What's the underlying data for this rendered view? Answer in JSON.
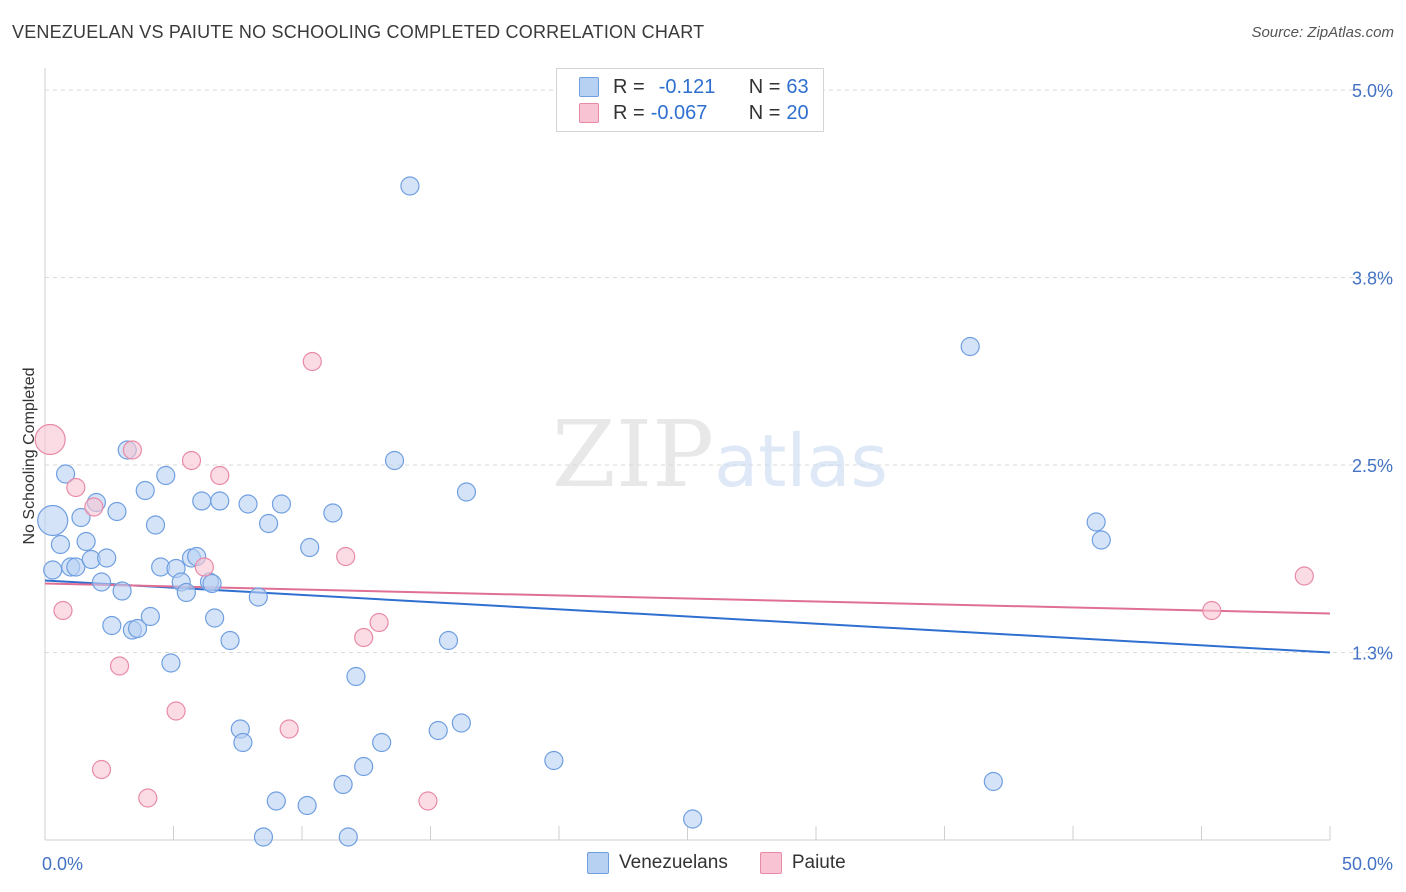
{
  "chart_data": {
    "type": "scatter",
    "title": "VENEZUELAN VS PAIUTE NO SCHOOLING COMPLETED CORRELATION CHART",
    "source": "Source: ZipAtlas.com",
    "ylabel": "No Schooling Completed",
    "xlim": [
      0,
      50
    ],
    "ylim": [
      0.0,
      5.0
    ],
    "x_tick_labels": {
      "left": "0.0%",
      "right": "50.0%"
    },
    "y_ticks": [
      {
        "value": 5.0,
        "label": "5.0%"
      },
      {
        "value": 3.75,
        "label": "3.8%"
      },
      {
        "value": 2.5,
        "label": "2.5%"
      },
      {
        "value": 1.25,
        "label": "1.3%"
      }
    ],
    "legend": {
      "rows": [
        {
          "r_label": "R = ",
          "r_value": "-0.121",
          "n_label": "N = ",
          "n_value": "63"
        },
        {
          "r_label": "R = ",
          "r_value": "-0.067",
          "n_label": "N = ",
          "n_value": "20"
        }
      ]
    },
    "watermark": "ZIPatlas",
    "colors": {
      "venezuelans_fill": "#b7d1f3",
      "venezuelans_stroke": "#6f9fe0",
      "venezuelans_line": "#2f6fd0",
      "paiute_fill": "#f8c4d3",
      "paiute_stroke": "#e88aa6",
      "paiute_line": "#e06f94"
    },
    "series": [
      {
        "name": "Venezuelans",
        "trend": {
          "x0": 0.0,
          "y0": 1.73,
          "x1": 50.0,
          "y1": 1.25
        },
        "points": [
          {
            "x": 0.3,
            "y": 2.13,
            "big": true
          },
          {
            "x": 0.3,
            "y": 1.8
          },
          {
            "x": 0.6,
            "y": 1.97
          },
          {
            "x": 0.8,
            "y": 2.44
          },
          {
            "x": 1.0,
            "y": 1.82
          },
          {
            "x": 1.2,
            "y": 1.82
          },
          {
            "x": 1.4,
            "y": 2.15
          },
          {
            "x": 1.6,
            "y": 1.99
          },
          {
            "x": 1.8,
            "y": 1.87
          },
          {
            "x": 2.0,
            "y": 2.25
          },
          {
            "x": 2.2,
            "y": 1.72
          },
          {
            "x": 2.4,
            "y": 1.88
          },
          {
            "x": 2.6,
            "y": 1.43
          },
          {
            "x": 2.8,
            "y": 2.19
          },
          {
            "x": 3.0,
            "y": 1.66
          },
          {
            "x": 3.2,
            "y": 2.6
          },
          {
            "x": 3.4,
            "y": 1.4
          },
          {
            "x": 3.6,
            "y": 1.41
          },
          {
            "x": 3.9,
            "y": 2.33
          },
          {
            "x": 4.1,
            "y": 1.49
          },
          {
            "x": 4.3,
            "y": 2.1
          },
          {
            "x": 4.5,
            "y": 1.82
          },
          {
            "x": 4.7,
            "y": 2.43
          },
          {
            "x": 4.9,
            "y": 1.18
          },
          {
            "x": 5.1,
            "y": 1.81
          },
          {
            "x": 5.3,
            "y": 1.72
          },
          {
            "x": 5.5,
            "y": 1.65
          },
          {
            "x": 5.7,
            "y": 1.88
          },
          {
            "x": 5.9,
            "y": 1.89
          },
          {
            "x": 6.1,
            "y": 2.26
          },
          {
            "x": 6.4,
            "y": 1.72
          },
          {
            "x": 6.5,
            "y": 1.71
          },
          {
            "x": 6.6,
            "y": 1.48
          },
          {
            "x": 6.8,
            "y": 2.26
          },
          {
            "x": 7.2,
            "y": 1.33
          },
          {
            "x": 7.6,
            "y": 0.74
          },
          {
            "x": 7.7,
            "y": 0.65
          },
          {
            "x": 7.9,
            "y": 2.24
          },
          {
            "x": 8.3,
            "y": 1.62
          },
          {
            "x": 8.5,
            "y": 0.02
          },
          {
            "x": 8.7,
            "y": 2.11
          },
          {
            "x": 9.0,
            "y": 0.26
          },
          {
            "x": 9.2,
            "y": 2.24
          },
          {
            "x": 10.2,
            "y": 0.23
          },
          {
            "x": 10.3,
            "y": 1.95
          },
          {
            "x": 11.2,
            "y": 2.18
          },
          {
            "x": 11.6,
            "y": 0.37
          },
          {
            "x": 11.8,
            "y": 0.02
          },
          {
            "x": 12.1,
            "y": 1.09
          },
          {
            "x": 12.4,
            "y": 0.49
          },
          {
            "x": 13.1,
            "y": 0.65
          },
          {
            "x": 13.6,
            "y": 2.53
          },
          {
            "x": 14.2,
            "y": 4.36
          },
          {
            "x": 15.3,
            "y": 0.73
          },
          {
            "x": 15.7,
            "y": 1.33
          },
          {
            "x": 16.2,
            "y": 0.78
          },
          {
            "x": 16.4,
            "y": 2.32
          },
          {
            "x": 19.8,
            "y": 0.53
          },
          {
            "x": 25.2,
            "y": 0.14
          },
          {
            "x": 36.0,
            "y": 3.29
          },
          {
            "x": 36.9,
            "y": 0.39
          },
          {
            "x": 40.9,
            "y": 2.12
          },
          {
            "x": 41.1,
            "y": 2.0
          }
        ]
      },
      {
        "name": "Paiute",
        "trend": {
          "x0": 0.0,
          "y0": 1.71,
          "x1": 50.0,
          "y1": 1.51
        },
        "points": [
          {
            "x": 0.2,
            "y": 2.67,
            "big": true
          },
          {
            "x": 0.7,
            "y": 1.53
          },
          {
            "x": 1.2,
            "y": 2.35
          },
          {
            "x": 1.9,
            "y": 2.22
          },
          {
            "x": 2.2,
            "y": 0.47
          },
          {
            "x": 2.9,
            "y": 1.16
          },
          {
            "x": 3.4,
            "y": 2.6
          },
          {
            "x": 4.0,
            "y": 0.28
          },
          {
            "x": 5.1,
            "y": 0.86
          },
          {
            "x": 5.7,
            "y": 2.53
          },
          {
            "x": 6.2,
            "y": 1.82
          },
          {
            "x": 6.8,
            "y": 2.43
          },
          {
            "x": 9.5,
            "y": 0.74
          },
          {
            "x": 10.4,
            "y": 3.19
          },
          {
            "x": 11.7,
            "y": 1.89
          },
          {
            "x": 12.4,
            "y": 1.35
          },
          {
            "x": 13.0,
            "y": 1.45
          },
          {
            "x": 14.9,
            "y": 0.26
          },
          {
            "x": 45.4,
            "y": 1.53
          },
          {
            "x": 49.0,
            "y": 1.76
          }
        ]
      }
    ],
    "bottom_legend": [
      "Venezuelans",
      "Paiute"
    ]
  }
}
